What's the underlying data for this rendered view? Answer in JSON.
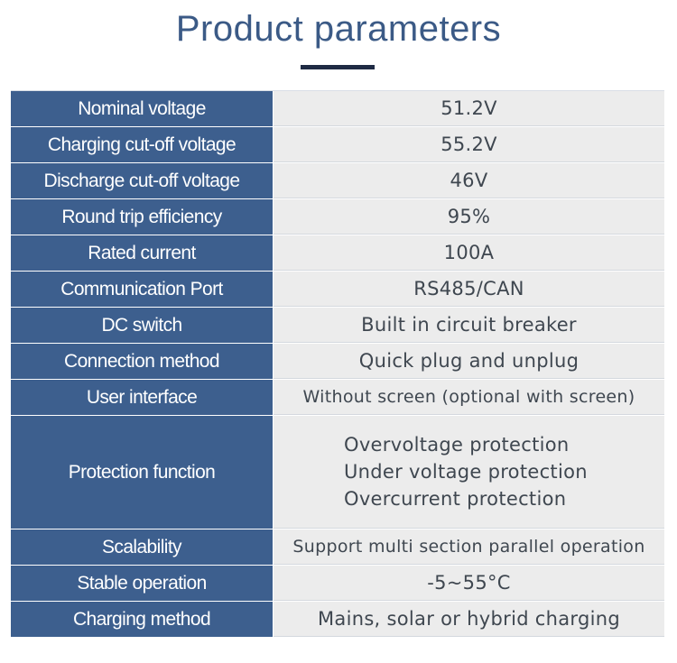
{
  "header": {
    "title": "Product parameters"
  },
  "table": {
    "rows": [
      {
        "label": "Nominal voltage",
        "value": "51.2V"
      },
      {
        "label": "Charging cut-off voltage",
        "value": "55.2V"
      },
      {
        "label": "Discharge cut-off voltage",
        "value": "46V"
      },
      {
        "label": "Round trip efficiency",
        "value": "95%"
      },
      {
        "label": "Rated current",
        "value": "100A"
      },
      {
        "label": "Communication Port",
        "value": "RS485/CAN"
      },
      {
        "label": "DC switch",
        "value": "Built in circuit breaker"
      },
      {
        "label": "Connection method",
        "value": "Quick plug and unplug"
      },
      {
        "label": "User interface",
        "value": "Without screen (optional with screen)"
      },
      {
        "label": "Protection function",
        "values": [
          "Overvoltage protection",
          "Under voltage protection",
          "Overcurrent protection"
        ]
      },
      {
        "label": "Scalability",
        "value": "Support multi section parallel operation"
      },
      {
        "label": "Stable operation",
        "value": "-5~55°C"
      },
      {
        "label": "Charging method",
        "value": "Mains, solar or hybrid charging"
      }
    ]
  },
  "colors": {
    "title": "#3b5a86",
    "label_bg": "#3d5f8e",
    "value_bg": "#ececec",
    "underline": "#1f2b44"
  }
}
